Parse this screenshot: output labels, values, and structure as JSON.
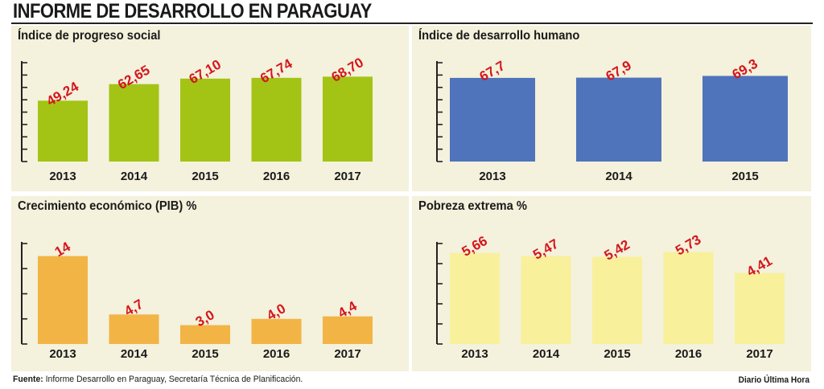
{
  "title": "INFORME DE DESARROLLO EN PARAGUAY",
  "footer": {
    "source_label": "Fuente:",
    "source_text": "Informe Desarrollo en Paraguay,  Secretaría Técnica de Planificación.",
    "credit": "Diario Última Hora"
  },
  "colors": {
    "panel_bg": "#f4f1dc",
    "label_red": "#d4161c",
    "axis": "#222222"
  },
  "chart_data": [
    {
      "type": "bar",
      "title": "Índice de progreso social",
      "categories": [
        "2013",
        "2014",
        "2015",
        "2016",
        "2017"
      ],
      "values": [
        49.24,
        62.65,
        67.1,
        67.74,
        68.7
      ],
      "value_labels": [
        "49,24",
        "62,65",
        "67,10",
        "67,74",
        "68,70"
      ],
      "ylim": [
        0,
        80
      ],
      "ticks": 8,
      "bar_color": "#a3c414",
      "grid": false
    },
    {
      "type": "bar",
      "title": "Índice de desarrollo humano",
      "categories": [
        "2013",
        "2014",
        "2015"
      ],
      "values": [
        67.7,
        67.9,
        69.3
      ],
      "value_labels": [
        "67,7",
        "67,9",
        "69,3"
      ],
      "ylim": [
        0,
        80
      ],
      "ticks": 8,
      "bar_color": "#4f74bb",
      "grid": false
    },
    {
      "type": "bar",
      "title": "Crecimiento económico  (PIB) %",
      "categories": [
        "2013",
        "2014",
        "2015",
        "2016",
        "2017"
      ],
      "values": [
        14,
        4.7,
        3.0,
        4.0,
        4.4
      ],
      "value_labels": [
        "14",
        "4,7",
        "3,0",
        "4,0",
        "4,4"
      ],
      "ylim": [
        0,
        16
      ],
      "ticks": 4,
      "bar_color": "#f2b445",
      "grid": false
    },
    {
      "type": "bar",
      "title": "Pobreza extrema %",
      "categories": [
        "2013",
        "2014",
        "2015",
        "2016",
        "2017"
      ],
      "values": [
        5.66,
        5.47,
        5.42,
        5.73,
        4.41
      ],
      "value_labels": [
        "5,66",
        "5,47",
        "5,42",
        "5,73",
        "4,41"
      ],
      "ylim": [
        0,
        6.25
      ],
      "ticks": 5,
      "bar_color": "#f9f09c",
      "grid": false
    }
  ]
}
